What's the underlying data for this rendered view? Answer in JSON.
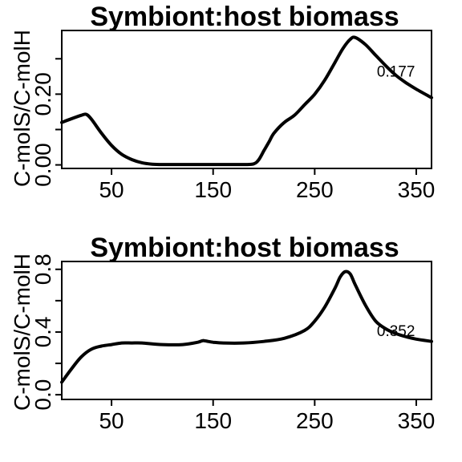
{
  "chart_data": [
    {
      "type": "line",
      "title": "Symbiont:host biomass",
      "ylabel": "C-molS/C-molH",
      "xlim": [
        1,
        365
      ],
      "ylim": [
        -0.01,
        0.38
      ],
      "xticks": [
        50,
        150,
        250,
        350
      ],
      "yticks": [
        0.0,
        0.1,
        0.2,
        0.3
      ],
      "ytick_labels": [
        "0.00",
        "",
        "0.20",
        ""
      ],
      "annotation": {
        "text": "0.177",
        "x": 330,
        "y": 0.265
      },
      "series": [
        {
          "x": [
            1,
            10,
            20,
            25,
            30,
            40,
            50,
            60,
            70,
            80,
            90,
            100,
            120,
            150,
            180,
            190,
            195,
            200,
            205,
            210,
            220,
            230,
            240,
            250,
            260,
            270,
            278,
            285,
            290,
            300,
            310,
            320,
            330,
            340,
            350,
            365
          ],
          "values": [
            0.12,
            0.13,
            0.14,
            0.143,
            0.13,
            0.09,
            0.055,
            0.03,
            0.015,
            0.006,
            0.002,
            0.001,
            0.001,
            0.001,
            0.001,
            0.003,
            0.015,
            0.04,
            0.065,
            0.09,
            0.12,
            0.14,
            0.17,
            0.2,
            0.24,
            0.29,
            0.33,
            0.355,
            0.36,
            0.34,
            0.31,
            0.28,
            0.253,
            0.232,
            0.214,
            0.19
          ]
        }
      ]
    },
    {
      "type": "line",
      "title": "Symbiont:host biomass",
      "ylabel": "C-molS/C-molH",
      "xlim": [
        1,
        365
      ],
      "ylim": [
        -0.03,
        0.85
      ],
      "xticks": [
        50,
        150,
        250,
        350
      ],
      "yticks": [
        0.0,
        0.2,
        0.4,
        0.6,
        0.8
      ],
      "ytick_labels": [
        "0.0",
        "",
        "0.4",
        "",
        "0.8"
      ],
      "annotation": {
        "text": "0.352",
        "x": 330,
        "y": 0.41
      },
      "series": [
        {
          "x": [
            1,
            10,
            20,
            30,
            40,
            50,
            60,
            70,
            80,
            100,
            120,
            135,
            140,
            145,
            150,
            160,
            180,
            200,
            220,
            240,
            250,
            260,
            270,
            275,
            280,
            285,
            290,
            300,
            310,
            320,
            330,
            340,
            350,
            365
          ],
          "values": [
            0.08,
            0.16,
            0.24,
            0.29,
            0.31,
            0.32,
            0.33,
            0.33,
            0.33,
            0.32,
            0.32,
            0.335,
            0.345,
            0.34,
            0.335,
            0.33,
            0.33,
            0.34,
            0.36,
            0.41,
            0.47,
            0.56,
            0.68,
            0.75,
            0.785,
            0.77,
            0.7,
            0.57,
            0.47,
            0.42,
            0.39,
            0.37,
            0.355,
            0.34
          ]
        }
      ]
    }
  ]
}
